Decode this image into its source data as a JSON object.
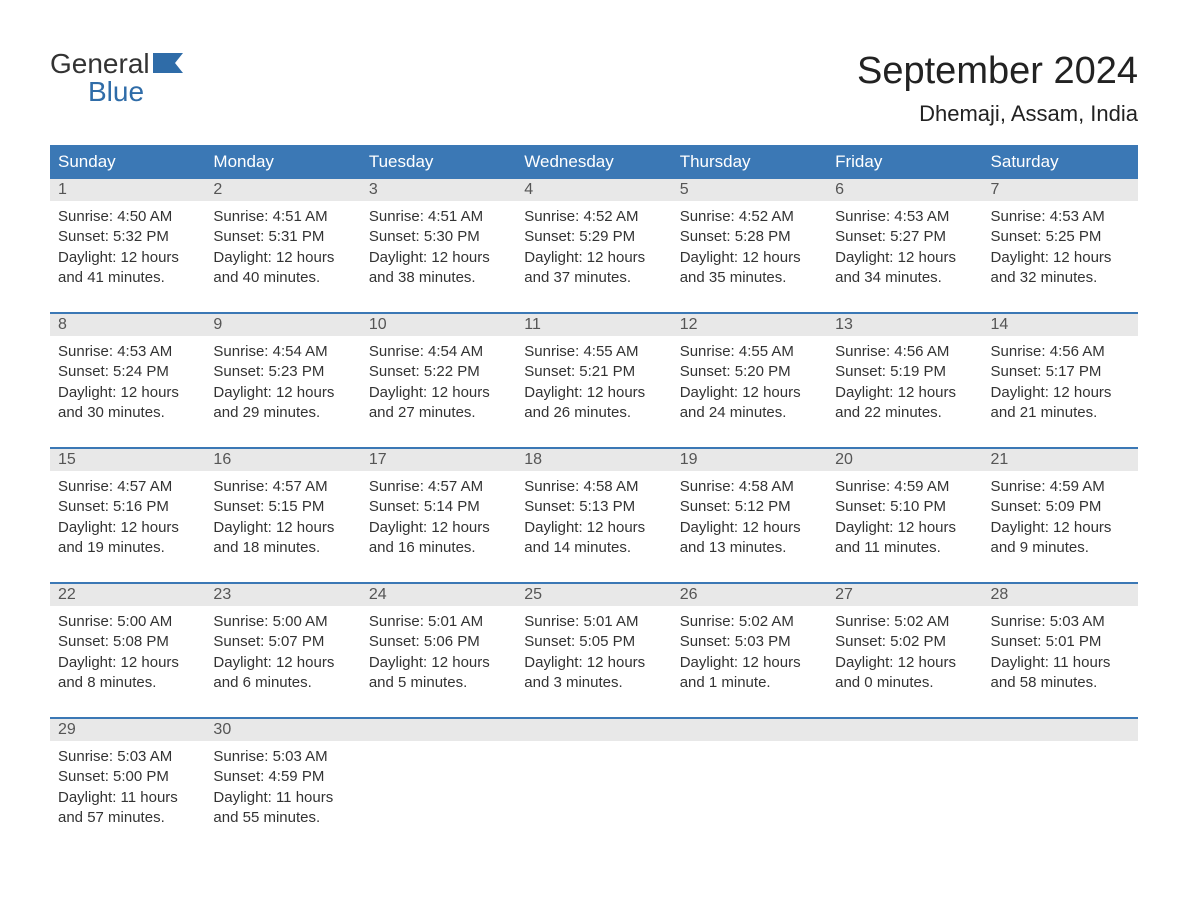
{
  "logo": {
    "text_general": "General",
    "text_blue": "Blue",
    "flag_color": "#2f6ca8"
  },
  "header": {
    "month_title": "September 2024",
    "location": "Dhemaji, Assam, India"
  },
  "styling": {
    "header_bg": "#3b78b5",
    "header_text_color": "#ffffff",
    "row_divider_color": "#3b78b5",
    "daynum_bg": "#e8e8e8",
    "daynum_color": "#555555",
    "body_text_color": "#333333",
    "page_bg": "#ffffff",
    "month_title_fontsize": 38,
    "location_fontsize": 22,
    "weekday_fontsize": 17,
    "daynum_fontsize": 16,
    "body_fontsize": 15
  },
  "weekdays": [
    "Sunday",
    "Monday",
    "Tuesday",
    "Wednesday",
    "Thursday",
    "Friday",
    "Saturday"
  ],
  "weeks": [
    [
      {
        "num": "1",
        "sunrise": "Sunrise: 4:50 AM",
        "sunset": "Sunset: 5:32 PM",
        "dl1": "Daylight: 12 hours",
        "dl2": "and 41 minutes."
      },
      {
        "num": "2",
        "sunrise": "Sunrise: 4:51 AM",
        "sunset": "Sunset: 5:31 PM",
        "dl1": "Daylight: 12 hours",
        "dl2": "and 40 minutes."
      },
      {
        "num": "3",
        "sunrise": "Sunrise: 4:51 AM",
        "sunset": "Sunset: 5:30 PM",
        "dl1": "Daylight: 12 hours",
        "dl2": "and 38 minutes."
      },
      {
        "num": "4",
        "sunrise": "Sunrise: 4:52 AM",
        "sunset": "Sunset: 5:29 PM",
        "dl1": "Daylight: 12 hours",
        "dl2": "and 37 minutes."
      },
      {
        "num": "5",
        "sunrise": "Sunrise: 4:52 AM",
        "sunset": "Sunset: 5:28 PM",
        "dl1": "Daylight: 12 hours",
        "dl2": "and 35 minutes."
      },
      {
        "num": "6",
        "sunrise": "Sunrise: 4:53 AM",
        "sunset": "Sunset: 5:27 PM",
        "dl1": "Daylight: 12 hours",
        "dl2": "and 34 minutes."
      },
      {
        "num": "7",
        "sunrise": "Sunrise: 4:53 AM",
        "sunset": "Sunset: 5:25 PM",
        "dl1": "Daylight: 12 hours",
        "dl2": "and 32 minutes."
      }
    ],
    [
      {
        "num": "8",
        "sunrise": "Sunrise: 4:53 AM",
        "sunset": "Sunset: 5:24 PM",
        "dl1": "Daylight: 12 hours",
        "dl2": "and 30 minutes."
      },
      {
        "num": "9",
        "sunrise": "Sunrise: 4:54 AM",
        "sunset": "Sunset: 5:23 PM",
        "dl1": "Daylight: 12 hours",
        "dl2": "and 29 minutes."
      },
      {
        "num": "10",
        "sunrise": "Sunrise: 4:54 AM",
        "sunset": "Sunset: 5:22 PM",
        "dl1": "Daylight: 12 hours",
        "dl2": "and 27 minutes."
      },
      {
        "num": "11",
        "sunrise": "Sunrise: 4:55 AM",
        "sunset": "Sunset: 5:21 PM",
        "dl1": "Daylight: 12 hours",
        "dl2": "and 26 minutes."
      },
      {
        "num": "12",
        "sunrise": "Sunrise: 4:55 AM",
        "sunset": "Sunset: 5:20 PM",
        "dl1": "Daylight: 12 hours",
        "dl2": "and 24 minutes."
      },
      {
        "num": "13",
        "sunrise": "Sunrise: 4:56 AM",
        "sunset": "Sunset: 5:19 PM",
        "dl1": "Daylight: 12 hours",
        "dl2": "and 22 minutes."
      },
      {
        "num": "14",
        "sunrise": "Sunrise: 4:56 AM",
        "sunset": "Sunset: 5:17 PM",
        "dl1": "Daylight: 12 hours",
        "dl2": "and 21 minutes."
      }
    ],
    [
      {
        "num": "15",
        "sunrise": "Sunrise: 4:57 AM",
        "sunset": "Sunset: 5:16 PM",
        "dl1": "Daylight: 12 hours",
        "dl2": "and 19 minutes."
      },
      {
        "num": "16",
        "sunrise": "Sunrise: 4:57 AM",
        "sunset": "Sunset: 5:15 PM",
        "dl1": "Daylight: 12 hours",
        "dl2": "and 18 minutes."
      },
      {
        "num": "17",
        "sunrise": "Sunrise: 4:57 AM",
        "sunset": "Sunset: 5:14 PM",
        "dl1": "Daylight: 12 hours",
        "dl2": "and 16 minutes."
      },
      {
        "num": "18",
        "sunrise": "Sunrise: 4:58 AM",
        "sunset": "Sunset: 5:13 PM",
        "dl1": "Daylight: 12 hours",
        "dl2": "and 14 minutes."
      },
      {
        "num": "19",
        "sunrise": "Sunrise: 4:58 AM",
        "sunset": "Sunset: 5:12 PM",
        "dl1": "Daylight: 12 hours",
        "dl2": "and 13 minutes."
      },
      {
        "num": "20",
        "sunrise": "Sunrise: 4:59 AM",
        "sunset": "Sunset: 5:10 PM",
        "dl1": "Daylight: 12 hours",
        "dl2": "and 11 minutes."
      },
      {
        "num": "21",
        "sunrise": "Sunrise: 4:59 AM",
        "sunset": "Sunset: 5:09 PM",
        "dl1": "Daylight: 12 hours",
        "dl2": "and 9 minutes."
      }
    ],
    [
      {
        "num": "22",
        "sunrise": "Sunrise: 5:00 AM",
        "sunset": "Sunset: 5:08 PM",
        "dl1": "Daylight: 12 hours",
        "dl2": "and 8 minutes."
      },
      {
        "num": "23",
        "sunrise": "Sunrise: 5:00 AM",
        "sunset": "Sunset: 5:07 PM",
        "dl1": "Daylight: 12 hours",
        "dl2": "and 6 minutes."
      },
      {
        "num": "24",
        "sunrise": "Sunrise: 5:01 AM",
        "sunset": "Sunset: 5:06 PM",
        "dl1": "Daylight: 12 hours",
        "dl2": "and 5 minutes."
      },
      {
        "num": "25",
        "sunrise": "Sunrise: 5:01 AM",
        "sunset": "Sunset: 5:05 PM",
        "dl1": "Daylight: 12 hours",
        "dl2": "and 3 minutes."
      },
      {
        "num": "26",
        "sunrise": "Sunrise: 5:02 AM",
        "sunset": "Sunset: 5:03 PM",
        "dl1": "Daylight: 12 hours",
        "dl2": "and 1 minute."
      },
      {
        "num": "27",
        "sunrise": "Sunrise: 5:02 AM",
        "sunset": "Sunset: 5:02 PM",
        "dl1": "Daylight: 12 hours",
        "dl2": "and 0 minutes."
      },
      {
        "num": "28",
        "sunrise": "Sunrise: 5:03 AM",
        "sunset": "Sunset: 5:01 PM",
        "dl1": "Daylight: 11 hours",
        "dl2": "and 58 minutes."
      }
    ],
    [
      {
        "num": "29",
        "sunrise": "Sunrise: 5:03 AM",
        "sunset": "Sunset: 5:00 PM",
        "dl1": "Daylight: 11 hours",
        "dl2": "and 57 minutes."
      },
      {
        "num": "30",
        "sunrise": "Sunrise: 5:03 AM",
        "sunset": "Sunset: 4:59 PM",
        "dl1": "Daylight: 11 hours",
        "dl2": "and 55 minutes."
      },
      {
        "empty": true
      },
      {
        "empty": true
      },
      {
        "empty": true
      },
      {
        "empty": true
      },
      {
        "empty": true
      }
    ]
  ]
}
